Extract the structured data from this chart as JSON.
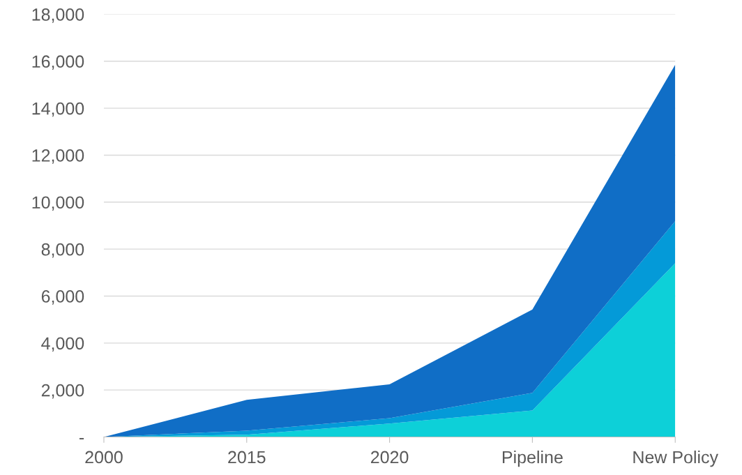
{
  "chart_data": {
    "type": "area",
    "stacked": true,
    "categories": [
      "2000",
      "2015",
      "2020",
      "Pipeline",
      "New Policy"
    ],
    "series": [
      {
        "color": "#0dd0d8",
        "values": [
          0,
          100,
          570,
          1130,
          7400
        ]
      },
      {
        "color": "#049ad8",
        "values": [
          0,
          170,
          230,
          750,
          1790
        ]
      },
      {
        "color": "#106ec6",
        "values": [
          0,
          1310,
          1440,
          3550,
          6660
        ]
      }
    ],
    "ylim": [
      0,
      18000
    ],
    "yticks": [
      {
        "value": 0,
        "label": "-"
      },
      {
        "value": 2000,
        "label": "2,000"
      },
      {
        "value": 4000,
        "label": "4,000"
      },
      {
        "value": 6000,
        "label": "6,000"
      },
      {
        "value": 8000,
        "label": "8,000"
      },
      {
        "value": 10000,
        "label": "10,000"
      },
      {
        "value": 12000,
        "label": "12,000"
      },
      {
        "value": 14000,
        "label": "14,000"
      },
      {
        "value": 16000,
        "label": "16,000"
      },
      {
        "value": 18000,
        "label": "18,000"
      }
    ],
    "grid": "y",
    "legend": false
  }
}
